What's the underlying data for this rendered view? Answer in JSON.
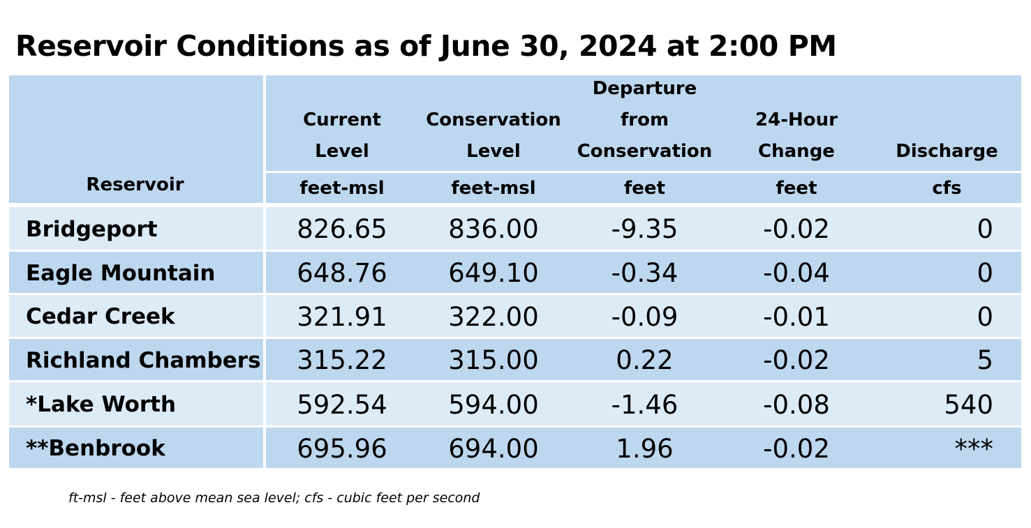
{
  "title": "Reservoir Conditions as of June 30, 2024 at 2:00 PM",
  "headers": {
    "reservoir": "Reservoir",
    "columns": [
      {
        "lines": [
          "Current",
          "Level"
        ],
        "unit": "feet-msl"
      },
      {
        "lines": [
          "Conservation",
          "Level"
        ],
        "unit": "feet-msl"
      },
      {
        "lines": [
          "Departure",
          "from",
          "Conservation"
        ],
        "unit": "feet"
      },
      {
        "lines": [
          "24-Hour",
          "Change"
        ],
        "unit": "feet"
      },
      {
        "lines": [
          "Discharge"
        ],
        "unit": "cfs"
      }
    ]
  },
  "rows": [
    {
      "name": "Bridgeport",
      "current": "826.65",
      "conservation": "836.00",
      "departure": "-9.35",
      "change": "-0.02",
      "discharge": "0"
    },
    {
      "name": "Eagle Mountain",
      "current": "648.76",
      "conservation": "649.10",
      "departure": "-0.34",
      "change": "-0.04",
      "discharge": "0"
    },
    {
      "name": "Cedar Creek",
      "current": "321.91",
      "conservation": "322.00",
      "departure": "-0.09",
      "change": "-0.01",
      "discharge": "0"
    },
    {
      "name": "Richland Chambers",
      "current": "315.22",
      "conservation": "315.00",
      "departure": "0.22",
      "change": "-0.02",
      "discharge": "5"
    },
    {
      "name": "*Lake Worth",
      "current": "592.54",
      "conservation": "594.00",
      "departure": "-1.46",
      "change": "-0.08",
      "discharge": "540"
    },
    {
      "name": "**Benbrook",
      "current": "695.96",
      "conservation": "694.00",
      "departure": "1.96",
      "change": "-0.02",
      "discharge": "***"
    }
  ],
  "footnote": "ft-msl - feet above mean sea level; cfs - cubic feet per second",
  "colors": {
    "header": "#bdd7ee",
    "row_light": "#ddebf7",
    "row_dark": "#bdd7ee"
  }
}
